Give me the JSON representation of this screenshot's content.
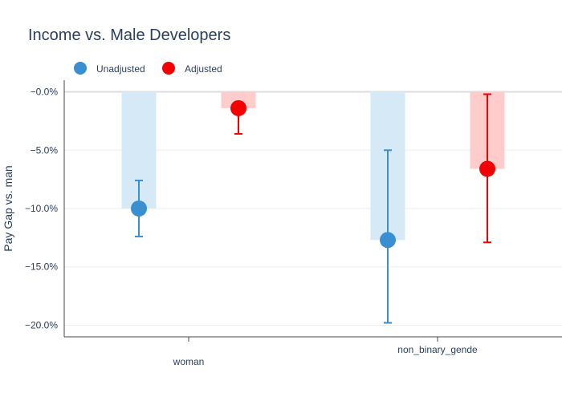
{
  "chart_data": {
    "type": "bar",
    "title": "Income vs. Male Developers",
    "xlabel": "",
    "ylabel": "Pay Gap vs. man",
    "ylim": [
      -0.21,
      0.01
    ],
    "yticks": [
      0,
      -0.05,
      -0.1,
      -0.15,
      -0.2
    ],
    "ytick_labels": [
      "−0.0%",
      "−5.0%",
      "−10.0%",
      "−15.0%",
      "−20.0%"
    ],
    "categories": [
      "woman",
      "non_binary_gende"
    ],
    "legend_position": "top-left",
    "series": [
      {
        "name": "Unadjusted",
        "color": "#3a8fd1",
        "bar_color": "#d6e9f7",
        "values": [
          -0.1,
          -0.127
        ],
        "err_upper": [
          -0.076,
          -0.05
        ],
        "err_lower": [
          -0.124,
          -0.198
        ]
      },
      {
        "name": "Adjusted",
        "color": "#f50000",
        "bar_color": "#ffcccc",
        "values": [
          -0.014,
          -0.066
        ],
        "err_upper": [
          -0.009,
          -0.002
        ],
        "err_lower": [
          -0.036,
          -0.129
        ]
      }
    ]
  },
  "colors": {
    "title": "#2a3f5f",
    "axis_text": "#2a3f5f",
    "grid": "#eeeeee",
    "axis_line": "#444444"
  }
}
